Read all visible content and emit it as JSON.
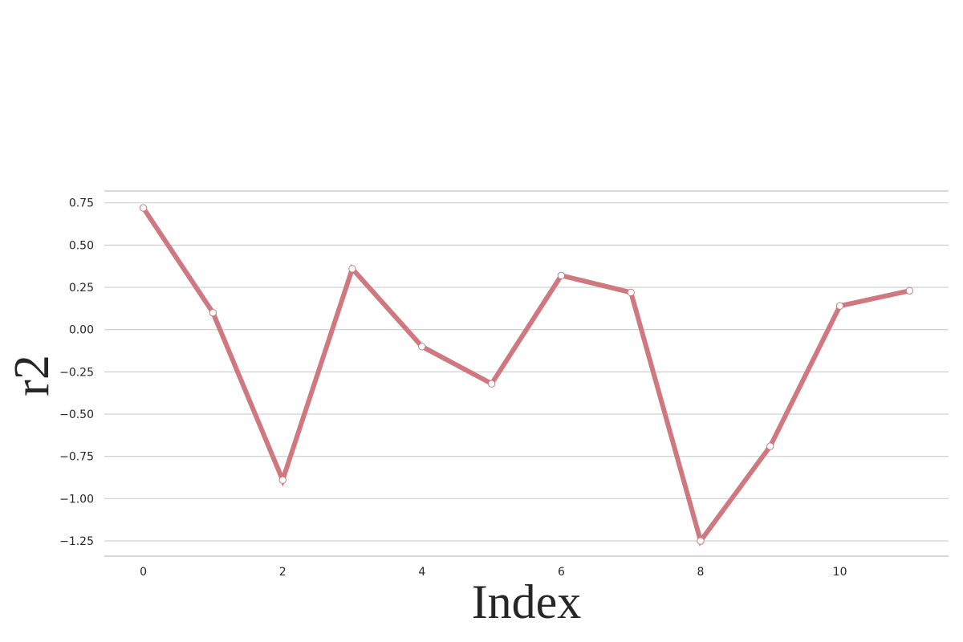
{
  "chart_data": {
    "type": "line",
    "title": "",
    "xlabel": "Index",
    "ylabel": "r2",
    "x": [
      0,
      1,
      2,
      3,
      4,
      5,
      6,
      7,
      8,
      9,
      10,
      11
    ],
    "series": [
      {
        "values": [
          0.72,
          0.1,
          -0.89,
          0.36,
          -0.1,
          -0.32,
          0.32,
          0.22,
          -1.25,
          -0.69,
          0.14,
          0.23
        ]
      }
    ],
    "xlim": [
      -0.56,
      11.56
    ],
    "ylim": [
      -1.34,
      0.82
    ],
    "x_ticks": [
      0,
      2,
      4,
      6,
      8,
      10
    ],
    "x_tick_labels": [
      "0",
      "2",
      "4",
      "6",
      "8",
      "10"
    ],
    "y_ticks": [
      0.75,
      0.5,
      0.25,
      0.0,
      -0.25,
      -0.5,
      -0.75,
      -1.0,
      -1.25
    ],
    "y_tick_labels": [
      "0.75",
      "0.50",
      "0.25",
      "0.00",
      "−0.25",
      "−0.50",
      "−0.75",
      "−1.00",
      "−1.25"
    ],
    "grid": "horizontal",
    "legend": "none",
    "colors": {
      "line": "#d07880",
      "marker_fill": "#ffffff",
      "marker_edge": "#d07880",
      "grid": "#cccccc",
      "text": "#262626"
    }
  }
}
